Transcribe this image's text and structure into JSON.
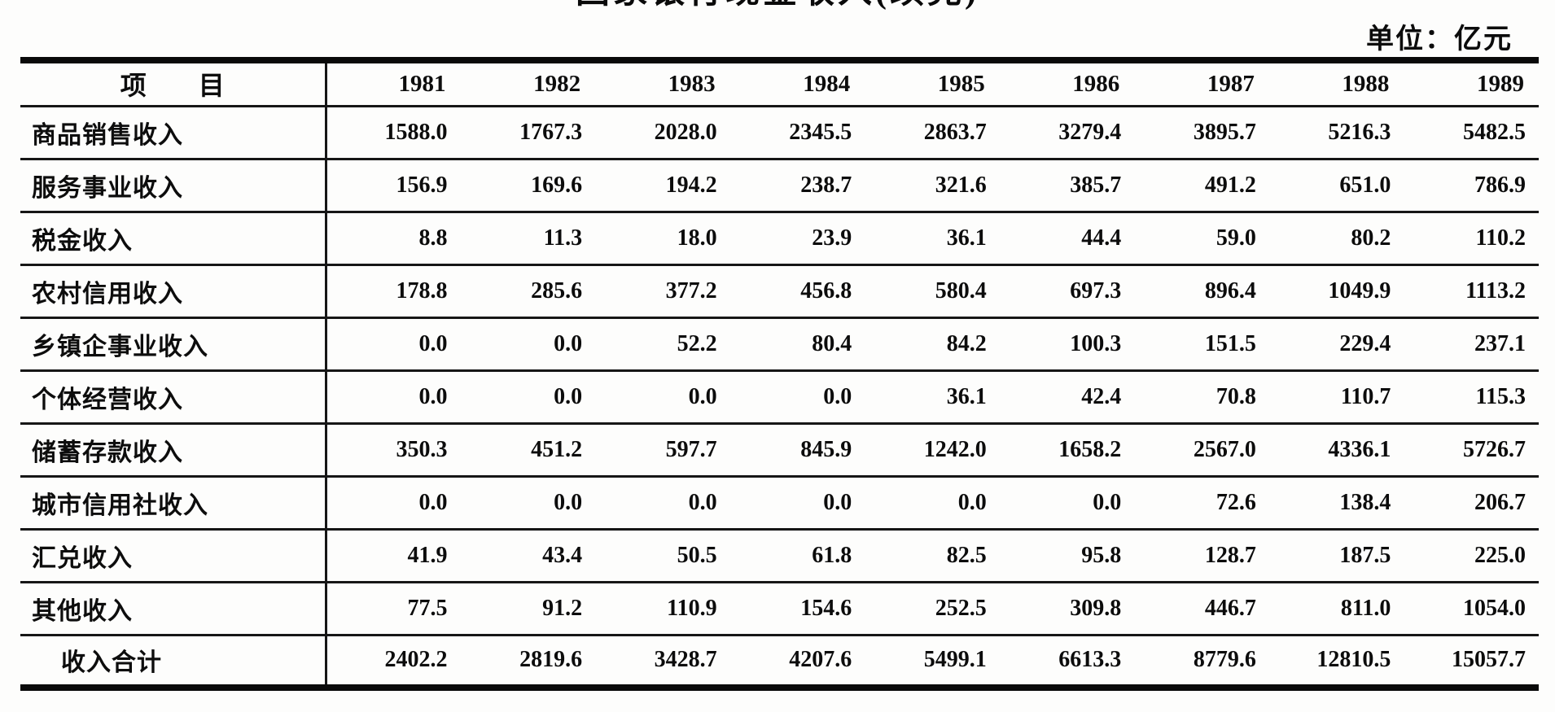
{
  "header": {
    "title": "国家银行现金收入(续完)",
    "unit_label": "单位：亿元"
  },
  "chart_data": {
    "type": "table",
    "title": "国家银行现金收入(续完)",
    "unit": "亿元",
    "columns": [
      "项　　目",
      "1981",
      "1982",
      "1983",
      "1984",
      "1985",
      "1986",
      "1987",
      "1988",
      "1989"
    ],
    "rows": [
      {
        "label": "商品销售收入",
        "values": [
          "1588.0",
          "1767.3",
          "2028.0",
          "2345.5",
          "2863.7",
          "3279.4",
          "3895.7",
          "5216.3",
          "5482.5"
        ]
      },
      {
        "label": "服务事业收入",
        "values": [
          "156.9",
          "169.6",
          "194.2",
          "238.7",
          "321.6",
          "385.7",
          "491.2",
          "651.0",
          "786.9"
        ]
      },
      {
        "label": "税金收入",
        "values": [
          "8.8",
          "11.3",
          "18.0",
          "23.9",
          "36.1",
          "44.4",
          "59.0",
          "80.2",
          "110.2"
        ]
      },
      {
        "label": "农村信用收入",
        "values": [
          "178.8",
          "285.6",
          "377.2",
          "456.8",
          "580.4",
          "697.3",
          "896.4",
          "1049.9",
          "1113.2"
        ]
      },
      {
        "label": "乡镇企事业收入",
        "values": [
          "0.0",
          "0.0",
          "52.2",
          "80.4",
          "84.2",
          "100.3",
          "151.5",
          "229.4",
          "237.1"
        ]
      },
      {
        "label": "个体经营收入",
        "values": [
          "0.0",
          "0.0",
          "0.0",
          "0.0",
          "36.1",
          "42.4",
          "70.8",
          "110.7",
          "115.3"
        ]
      },
      {
        "label": "储蓄存款收入",
        "values": [
          "350.3",
          "451.2",
          "597.7",
          "845.9",
          "1242.0",
          "1658.2",
          "2567.0",
          "4336.1",
          "5726.7"
        ]
      },
      {
        "label": "城市信用社收入",
        "values": [
          "0.0",
          "0.0",
          "0.0",
          "0.0",
          "0.0",
          "0.0",
          "72.6",
          "138.4",
          "206.7"
        ]
      },
      {
        "label": "汇兑收入",
        "values": [
          "41.9",
          "43.4",
          "50.5",
          "61.8",
          "82.5",
          "95.8",
          "128.7",
          "187.5",
          "225.0"
        ]
      },
      {
        "label": "其他收入",
        "values": [
          "77.5",
          "91.2",
          "110.9",
          "154.6",
          "252.5",
          "309.8",
          "446.7",
          "811.0",
          "1054.0"
        ]
      },
      {
        "label": "收入合计",
        "values": [
          "2402.2",
          "2819.6",
          "3428.7",
          "4207.6",
          "5499.1",
          "6613.3",
          "8779.6",
          "12810.5",
          "15057.7"
        ]
      }
    ]
  }
}
